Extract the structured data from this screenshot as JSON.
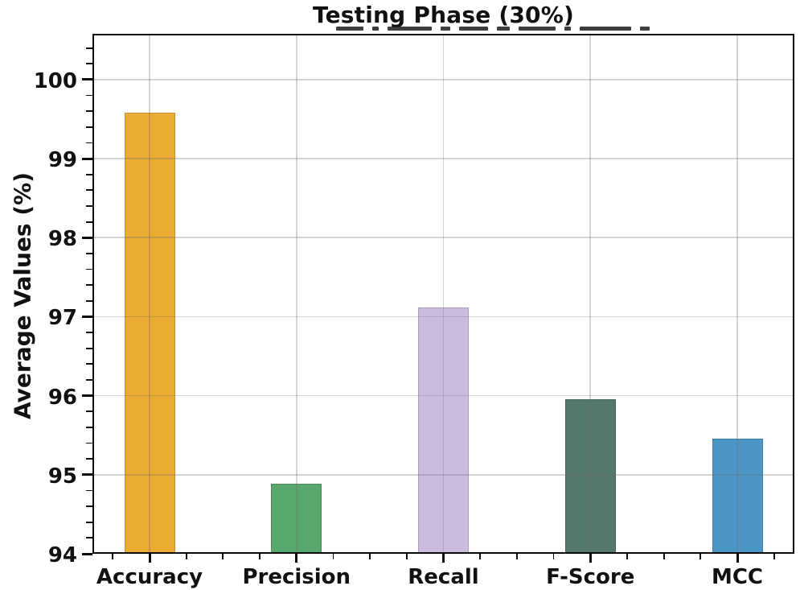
{
  "chart_data": {
    "type": "bar",
    "title": "Testing Phase (30%)",
    "xlabel": "",
    "ylabel": "Average Values (%)",
    "categories": [
      "Accuracy",
      "Precision",
      "Recall",
      "F-Score",
      "MCC"
    ],
    "values": [
      99.58,
      94.89,
      97.12,
      95.96,
      95.46
    ],
    "bar_colors": [
      "#ebac33",
      "#58a86d",
      "#cbbcde",
      "#54796a",
      "#4c96c5"
    ],
    "ylim": [
      94,
      100.58
    ],
    "yticks": [
      94,
      95,
      96,
      97,
      98,
      99,
      100
    ],
    "y_minor_step": 0.2,
    "grid": true,
    "legend_position": "none"
  },
  "styles": {
    "grid_color": "rgba(110,110,110,0.30)",
    "spine_color": "#0d0d0d",
    "text_color": "#111111",
    "background": "#ffffff"
  }
}
